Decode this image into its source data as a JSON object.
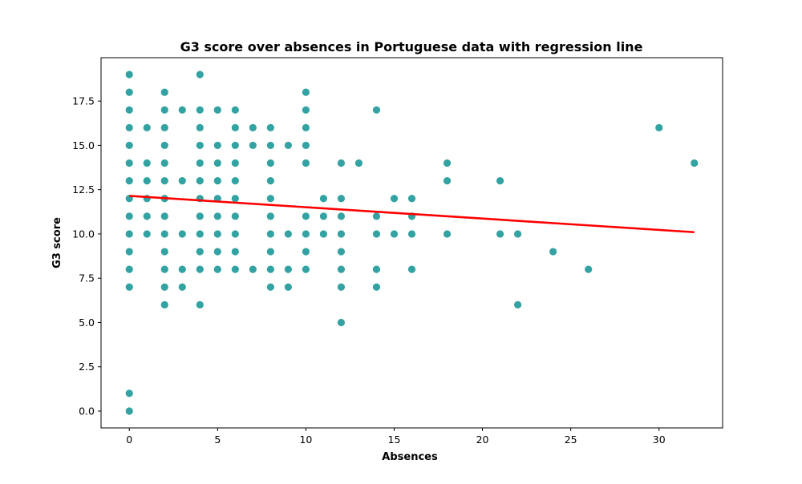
{
  "chart_data": {
    "type": "scatter",
    "title": "G3 score over absences in Portuguese data with regression line",
    "xlabel": "Absences",
    "ylabel": "G3 score",
    "xlim": [
      -1.6,
      33.6
    ],
    "ylim": [
      -0.95,
      19.95
    ],
    "x_ticks": [
      0,
      5,
      10,
      15,
      20,
      25,
      30
    ],
    "x_tick_labels": [
      "0",
      "5",
      "10",
      "15",
      "20",
      "25",
      "30"
    ],
    "y_ticks": [
      0.0,
      2.5,
      5.0,
      7.5,
      10.0,
      12.5,
      15.0,
      17.5
    ],
    "y_tick_labels": [
      "0.0",
      "2.5",
      "5.0",
      "7.5",
      "10.0",
      "12.5",
      "15.0",
      "17.5"
    ],
    "grid": false,
    "legend": "none",
    "colors": {
      "points": "#008B8B",
      "regression_line": "#ff0000"
    },
    "series": [
      {
        "points": [
          [
            0,
            0
          ],
          [
            0,
            1
          ],
          [
            0,
            7
          ],
          [
            0,
            8
          ],
          [
            0,
            9
          ],
          [
            0,
            10
          ],
          [
            0,
            11
          ],
          [
            0,
            12
          ],
          [
            0,
            13
          ],
          [
            0,
            14
          ],
          [
            0,
            15
          ],
          [
            0,
            16
          ],
          [
            0,
            17
          ],
          [
            0,
            18
          ],
          [
            0,
            19
          ],
          [
            1,
            10
          ],
          [
            1,
            11
          ],
          [
            1,
            12
          ],
          [
            1,
            13
          ],
          [
            1,
            14
          ],
          [
            1,
            16
          ],
          [
            2,
            6
          ],
          [
            2,
            7
          ],
          [
            2,
            8
          ],
          [
            2,
            9
          ],
          [
            2,
            10
          ],
          [
            2,
            11
          ],
          [
            2,
            12
          ],
          [
            2,
            13
          ],
          [
            2,
            14
          ],
          [
            2,
            15
          ],
          [
            2,
            16
          ],
          [
            2,
            17
          ],
          [
            2,
            18
          ],
          [
            3,
            7
          ],
          [
            3,
            8
          ],
          [
            3,
            10
          ],
          [
            3,
            13
          ],
          [
            3,
            17
          ],
          [
            4,
            6
          ],
          [
            4,
            8
          ],
          [
            4,
            9
          ],
          [
            4,
            10
          ],
          [
            4,
            11
          ],
          [
            4,
            12
          ],
          [
            4,
            13
          ],
          [
            4,
            14
          ],
          [
            4,
            15
          ],
          [
            4,
            16
          ],
          [
            4,
            17
          ],
          [
            4,
            19
          ],
          [
            5,
            8
          ],
          [
            5,
            9
          ],
          [
            5,
            10
          ],
          [
            5,
            11
          ],
          [
            5,
            12
          ],
          [
            5,
            13
          ],
          [
            5,
            14
          ],
          [
            5,
            15
          ],
          [
            5,
            17
          ],
          [
            6,
            8
          ],
          [
            6,
            9
          ],
          [
            6,
            10
          ],
          [
            6,
            11
          ],
          [
            6,
            12
          ],
          [
            6,
            13
          ],
          [
            6,
            14
          ],
          [
            6,
            15
          ],
          [
            6,
            16
          ],
          [
            6,
            17
          ],
          [
            7,
            8
          ],
          [
            7,
            15
          ],
          [
            7,
            16
          ],
          [
            8,
            7
          ],
          [
            8,
            8
          ],
          [
            8,
            9
          ],
          [
            8,
            10
          ],
          [
            8,
            11
          ],
          [
            8,
            12
          ],
          [
            8,
            13
          ],
          [
            8,
            14
          ],
          [
            8,
            15
          ],
          [
            8,
            16
          ],
          [
            9,
            7
          ],
          [
            9,
            8
          ],
          [
            9,
            10
          ],
          [
            9,
            15
          ],
          [
            10,
            8
          ],
          [
            10,
            9
          ],
          [
            10,
            10
          ],
          [
            10,
            11
          ],
          [
            10,
            14
          ],
          [
            10,
            15
          ],
          [
            10,
            16
          ],
          [
            10,
            17
          ],
          [
            10,
            18
          ],
          [
            11,
            10
          ],
          [
            11,
            11
          ],
          [
            11,
            12
          ],
          [
            12,
            5
          ],
          [
            12,
            7
          ],
          [
            12,
            8
          ],
          [
            12,
            9
          ],
          [
            12,
            10
          ],
          [
            12,
            11
          ],
          [
            12,
            12
          ],
          [
            12,
            14
          ],
          [
            13,
            14
          ],
          [
            14,
            7
          ],
          [
            14,
            8
          ],
          [
            14,
            10
          ],
          [
            14,
            11
          ],
          [
            14,
            17
          ],
          [
            15,
            10
          ],
          [
            15,
            12
          ],
          [
            16,
            8
          ],
          [
            16,
            10
          ],
          [
            16,
            11
          ],
          [
            16,
            12
          ],
          [
            18,
            10
          ],
          [
            18,
            13
          ],
          [
            18,
            14
          ],
          [
            21,
            10
          ],
          [
            21,
            13
          ],
          [
            22,
            6
          ],
          [
            22,
            10
          ],
          [
            24,
            9
          ],
          [
            26,
            8
          ],
          [
            30,
            16
          ],
          [
            32,
            14
          ]
        ]
      }
    ],
    "regression_line": {
      "x": [
        0,
        32
      ],
      "y": [
        12.15,
        10.1
      ]
    }
  }
}
